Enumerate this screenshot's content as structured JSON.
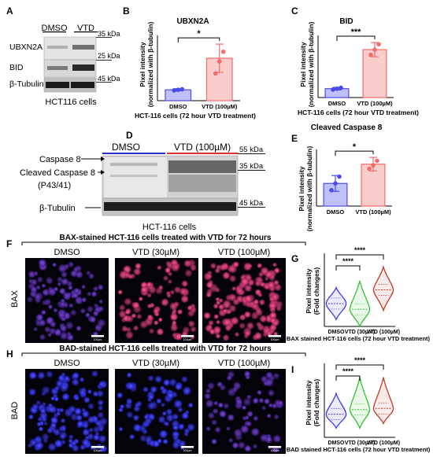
{
  "panels": {
    "A": {
      "letter": "A",
      "lanes": [
        "DMSO",
        "VTD"
      ],
      "rows": [
        "UBXN2A",
        "BID",
        "β-Tubulin"
      ],
      "markers": [
        "35 kDa",
        "25 kDa",
        "45 kDa"
      ],
      "caption": "HCT116 cells"
    },
    "B": {
      "letter": "B",
      "chart_data": {
        "type": "bar",
        "title": "UBXN2A",
        "ylabel_line1": "Pixel intensity",
        "ylabel_line2": "(normalized with β-tubulin)",
        "xlabel": "HCT-116 cells (72 hour VTD treatment)",
        "categories": [
          "DMSO",
          "VTD (100µM)"
        ],
        "values": [
          1.0,
          3.9
        ],
        "errors": [
          0.1,
          1.3
        ],
        "points": [
          [
            0.95,
            1.0,
            1.05
          ],
          [
            2.5,
            3.6,
            4.5
          ]
        ],
        "ylim": [
          0,
          6
        ],
        "significance": "*",
        "colors": [
          "#4a4aea",
          "#f26c6c"
        ]
      }
    },
    "C": {
      "letter": "C",
      "chart_data": {
        "type": "bar",
        "title": "BID",
        "ylabel_line1": "Pixel intensity",
        "ylabel_line2": "(normalized with β-tubulin)",
        "xlabel": "HCT-116 cells (72 hour VTD treatment)",
        "categories": [
          "DMSO",
          "VTD (100µM)"
        ],
        "values": [
          1.0,
          5.4
        ],
        "errors": [
          0.15,
          0.8
        ],
        "points": [
          [
            0.9,
            1.0,
            1.1
          ],
          [
            4.8,
            5.4,
            6.0
          ]
        ],
        "ylim": [
          0,
          7
        ],
        "significance": "***",
        "colors": [
          "#4a4aea",
          "#f26c6c"
        ]
      }
    },
    "D": {
      "letter": "D",
      "lanes": [
        "DMSO",
        "VTD (100µM)"
      ],
      "rows": [
        "Caspase 8",
        "Cleaved Caspase 8",
        "(P43/41)",
        "β-Tubulin"
      ],
      "markers": [
        "55 kDa",
        "35 kDa",
        "45 kDa"
      ],
      "caption": "HCT-116 cells"
    },
    "E": {
      "letter": "E",
      "chart_data": {
        "type": "bar",
        "title": "Cleaved Caspase 8",
        "ylabel_line1": "Pixel intensity",
        "ylabel_line2": "(normalized with β-tubulin)",
        "categories": [
          "DMSO",
          "VTD (100µM)"
        ],
        "values": [
          1.0,
          1.85
        ],
        "errors": [
          0.35,
          0.3
        ],
        "points": [
          [
            0.7,
            1.0,
            1.3
          ],
          [
            1.65,
            1.8,
            2.0
          ]
        ],
        "ylim": [
          0,
          2.5
        ],
        "significance": "*",
        "colors": [
          "#4a4aea",
          "#f26c6c"
        ]
      }
    },
    "F": {
      "letter": "F",
      "title": "BAX-stained HCT-116 cells treated with VTD for 72 hours",
      "columns": [
        "DMSO",
        "VTD (30µM)",
        "VTD (100µM)"
      ],
      "row_label": "BAX",
      "scale_bar": "100µm"
    },
    "G": {
      "letter": "G",
      "chart_data": {
        "type": "violin",
        "ylabel_line1": "Pixel intensity",
        "ylabel_line2": "(Fold changes)",
        "xlabel": "BAX stained HCT-116 cells (72 hour VTD treatment)",
        "categories": [
          "DMSO",
          "VTD (30µM)",
          "VTD (100µM)"
        ],
        "medians": [
          1.0,
          0.75,
          1.6
        ],
        "ranges": [
          [
            0.3,
            1.7
          ],
          [
            0.0,
            2.0
          ],
          [
            0.7,
            2.6
          ]
        ],
        "significance": [
          "****",
          "****"
        ],
        "colors": [
          "#3c3ce0",
          "#35c035",
          "#c0392b"
        ]
      }
    },
    "H": {
      "letter": "H",
      "title": "BAD-stained HCT-116 cells treated with VTD for 72 hours",
      "columns": [
        "DMSO",
        "VTD (30µM)",
        "VTD (100µM)"
      ],
      "row_label": "BAD",
      "scale_bar": "100µm"
    },
    "I": {
      "letter": "I",
      "chart_data": {
        "type": "violin",
        "ylabel_line1": "Pixel intensity",
        "ylabel_line2": "(Fold changes)",
        "xlabel": "BAD stained HCT-116 cells (72 hour VTD treatment)",
        "categories": [
          "DMSO",
          "VTD (30µM)",
          "VTD (100µM)"
        ],
        "medians": [
          1.0,
          1.2,
          1.25
        ],
        "ranges": [
          [
            0.4,
            1.9
          ],
          [
            0.4,
            2.6
          ],
          [
            0.6,
            2.6
          ]
        ],
        "significance": [
          "****",
          "****"
        ],
        "colors": [
          "#3c3ce0",
          "#35c035",
          "#c0392b"
        ]
      }
    }
  }
}
